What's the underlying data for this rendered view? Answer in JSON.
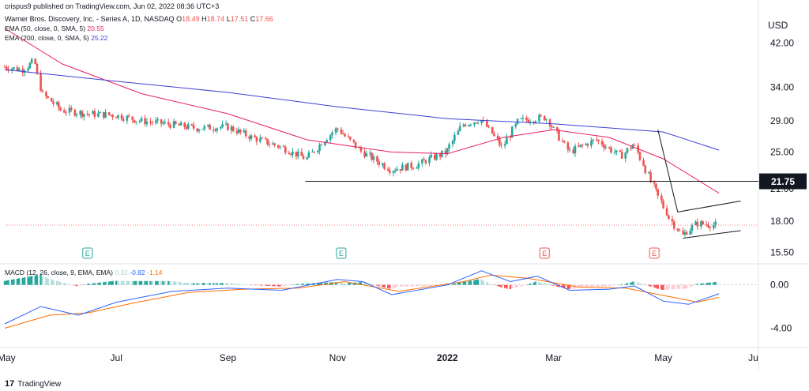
{
  "header": {
    "published_by": "crispus9 published on TradingView.com, Jun 02, 2022 08:36 UTC+3",
    "symbol_line": "Warner Bros. Discovery, Inc. - Series A, 1D, NASDAQ",
    "ohlc": {
      "o_label": "O",
      "o": "18.49",
      "h_label": "H",
      "h": "18.74",
      "l_label": "L",
      "l": "17.51",
      "c_label": "C",
      "c": "17.66"
    }
  },
  "indicators": {
    "ema50": {
      "label": "EMA (50, close, 0, SMA, 5)",
      "value": "20.55",
      "color": "#e91e63"
    },
    "ema200": {
      "label": "EMA (200, close, 0, SMA, 5)",
      "value": "25.22",
      "color": "#3f3fd4"
    },
    "macd": {
      "label": "MACD (12, 26, close, 9, EMA, EMA)",
      "hist": "0.32",
      "macd": "-0.82",
      "signal": "-1.14",
      "hist_color": "#26a69a",
      "macd_color": "#2962ff",
      "signal_color": "#ff6d00"
    }
  },
  "currency": "USD",
  "branding": {
    "logo_text": "TradingView",
    "logo_mark": "17"
  },
  "colors": {
    "up": "#26a69a",
    "down": "#ef5350",
    "support": "#131722",
    "label_bg": "#131722"
  },
  "chart_data": [
    {
      "type": "candlestick",
      "title": "Warner Bros. Discovery, Inc. - Series A, 1D, NASDAQ",
      "y_axis_ticks": [
        "42.00",
        "34.00",
        "29.00",
        "25.00",
        "21.00",
        "18.00",
        "15.50"
      ],
      "y_scale": "log",
      "ylim": [
        14.8,
        50
      ],
      "x_axis_ticks": [
        "May",
        "Jul",
        "Sep",
        "Nov",
        "2022",
        "Mar",
        "May",
        "Ju"
      ],
      "x_tick_dates": [
        "2021-05-01",
        "2021-07-01",
        "2021-09-01",
        "2021-11-01",
        "2022-01-01",
        "2022-03-01",
        "2022-05-01",
        "2022-06-20"
      ],
      "x_range": [
        "2021-04-30",
        "2022-06-22"
      ],
      "highlight_level": {
        "value": 21.75,
        "label": "21.75"
      },
      "last_price_line": 17.66,
      "price_path": [
        [
          "2021-04-30",
          37.5
        ],
        [
          "2021-05-10",
          37.0
        ],
        [
          "2021-05-17",
          38.5
        ],
        [
          "2021-05-21",
          33.0
        ],
        [
          "2021-06-01",
          30.5
        ],
        [
          "2021-06-15",
          30.0
        ],
        [
          "2021-07-01",
          29.8
        ],
        [
          "2021-07-15",
          29.0
        ],
        [
          "2021-08-01",
          28.5
        ],
        [
          "2021-08-15",
          28.0
        ],
        [
          "2021-09-01",
          28.2
        ],
        [
          "2021-09-15",
          26.8
        ],
        [
          "2021-10-01",
          25.6
        ],
        [
          "2021-10-15",
          24.2
        ],
        [
          "2021-11-01",
          28.0
        ],
        [
          "2021-11-15",
          25.0
        ],
        [
          "2021-12-01",
          23.0
        ],
        [
          "2021-12-15",
          23.5
        ],
        [
          "2022-01-01",
          25.0
        ],
        [
          "2022-01-10",
          28.5
        ],
        [
          "2022-01-20",
          29.2
        ],
        [
          "2022-02-01",
          25.5
        ],
        [
          "2022-02-10",
          29.0
        ],
        [
          "2022-02-25",
          29.5
        ],
        [
          "2022-03-10",
          25.0
        ],
        [
          "2022-03-25",
          26.5
        ],
        [
          "2022-04-08",
          24.5
        ],
        [
          "2022-04-15",
          26.0
        ],
        [
          "2022-04-25",
          21.5
        ],
        [
          "2022-05-05",
          18.2
        ],
        [
          "2022-05-12",
          16.8
        ],
        [
          "2022-05-20",
          17.8
        ],
        [
          "2022-06-01",
          17.66
        ]
      ],
      "ema50": [
        [
          "2021-04-30",
          45.0
        ],
        [
          "2021-06-01",
          38.0
        ],
        [
          "2021-07-15",
          33.0
        ],
        [
          "2021-09-01",
          30.0
        ],
        [
          "2021-10-15",
          26.5
        ],
        [
          "2021-12-01",
          25.0
        ],
        [
          "2022-01-01",
          24.8
        ],
        [
          "2022-02-01",
          26.8
        ],
        [
          "2022-03-01",
          27.8
        ],
        [
          "2022-04-01",
          26.8
        ],
        [
          "2022-05-01",
          24.2
        ],
        [
          "2022-06-01",
          20.55
        ]
      ],
      "ema200": [
        [
          "2021-04-30",
          37.0
        ],
        [
          "2021-07-01",
          35.0
        ],
        [
          "2021-09-01",
          33.2
        ],
        [
          "2021-11-01",
          31.0
        ],
        [
          "2022-01-01",
          29.3
        ],
        [
          "2022-03-01",
          28.6
        ],
        [
          "2022-05-01",
          27.5
        ],
        [
          "2022-06-01",
          25.22
        ]
      ],
      "pattern_lines": [
        {
          "name": "flagpole",
          "from": [
            "2022-04-28",
            27.8
          ],
          "to": [
            "2022-05-09",
            18.8
          ]
        },
        {
          "name": "flag-upper",
          "from": [
            "2022-05-09",
            18.8
          ],
          "to": [
            "2022-06-13",
            19.8
          ]
        },
        {
          "name": "flag-lower",
          "from": [
            "2022-05-12",
            16.6
          ],
          "to": [
            "2022-06-13",
            17.2
          ]
        }
      ],
      "earnings_markers": [
        {
          "date": "2021-06-15",
          "label": "E",
          "type": "up"
        },
        {
          "date": "2021-11-03",
          "label": "E",
          "type": "up"
        },
        {
          "date": "2022-02-24",
          "label": "E",
          "type": "down"
        },
        {
          "date": "2022-04-26",
          "label": "E",
          "type": "down"
        }
      ]
    },
    {
      "type": "line",
      "title": "MACD (12, 26, close, 9, EMA, EMA)",
      "y_axis_ticks": [
        "0.00",
        "-4.00"
      ],
      "ylim": [
        -5.5,
        1.8
      ],
      "series": [
        {
          "name": "MACD",
          "points": [
            [
              "2021-04-30",
              -3.6
            ],
            [
              "2021-05-20",
              -2.0
            ],
            [
              "2021-06-10",
              -2.8
            ],
            [
              "2021-07-01",
              -1.6
            ],
            [
              "2021-08-01",
              -0.6
            ],
            [
              "2021-09-01",
              -0.3
            ],
            [
              "2021-10-01",
              -0.5
            ],
            [
              "2021-11-01",
              0.5
            ],
            [
              "2021-11-15",
              0.3
            ],
            [
              "2021-12-01",
              -0.9
            ],
            [
              "2022-01-01",
              0.0
            ],
            [
              "2022-01-20",
              1.3
            ],
            [
              "2022-02-05",
              0.3
            ],
            [
              "2022-02-20",
              0.8
            ],
            [
              "2022-03-10",
              -0.5
            ],
            [
              "2022-04-01",
              -0.4
            ],
            [
              "2022-04-15",
              -0.1
            ],
            [
              "2022-05-01",
              -1.5
            ],
            [
              "2022-05-15",
              -1.8
            ],
            [
              "2022-06-01",
              -0.82
            ]
          ]
        },
        {
          "name": "Signal",
          "points": [
            [
              "2021-04-30",
              -4.0
            ],
            [
              "2021-05-25",
              -2.8
            ],
            [
              "2021-06-15",
              -2.6
            ],
            [
              "2021-07-10",
              -1.7
            ],
            [
              "2021-08-10",
              -0.7
            ],
            [
              "2021-09-10",
              -0.4
            ],
            [
              "2021-10-10",
              -0.3
            ],
            [
              "2021-11-05",
              0.3
            ],
            [
              "2021-12-05",
              -0.6
            ],
            [
              "2022-01-10",
              0.3
            ],
            [
              "2022-01-25",
              0.9
            ],
            [
              "2022-02-15",
              0.6
            ],
            [
              "2022-03-15",
              -0.2
            ],
            [
              "2022-04-10",
              -0.3
            ],
            [
              "2022-05-05",
              -1.1
            ],
            [
              "2022-05-20",
              -1.6
            ],
            [
              "2022-06-01",
              -1.14
            ]
          ]
        }
      ],
      "histogram_last": 0.32
    }
  ]
}
